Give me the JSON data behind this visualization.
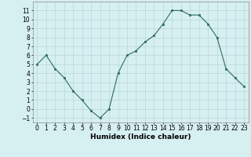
{
  "x": [
    0,
    1,
    2,
    3,
    4,
    5,
    6,
    7,
    8,
    9,
    10,
    11,
    12,
    13,
    14,
    15,
    16,
    17,
    18,
    19,
    20,
    21,
    22,
    23
  ],
  "y": [
    5,
    6,
    4.5,
    3.5,
    2,
    1,
    -0.2,
    -1,
    0,
    4,
    6,
    6.5,
    7.5,
    8.2,
    9.5,
    11,
    11,
    10.5,
    10.5,
    9.5,
    8,
    4.5,
    3.5,
    2.5
  ],
  "xlabel": "Humidex (Indice chaleur)",
  "xlim": [
    -0.5,
    23.5
  ],
  "ylim": [
    -1.5,
    12
  ],
  "line_color": "#2e6b5e",
  "marker": "s",
  "marker_size": 2,
  "bg_color": "#d6eff0",
  "grid_color": "#b8d8da",
  "yticks": [
    -1,
    0,
    1,
    2,
    3,
    4,
    5,
    6,
    7,
    8,
    9,
    10,
    11
  ],
  "xticks": [
    0,
    1,
    2,
    3,
    4,
    5,
    6,
    7,
    8,
    9,
    10,
    11,
    12,
    13,
    14,
    15,
    16,
    17,
    18,
    19,
    20,
    21,
    22,
    23
  ],
  "tick_fontsize": 5.5,
  "xlabel_fontsize": 6.5
}
